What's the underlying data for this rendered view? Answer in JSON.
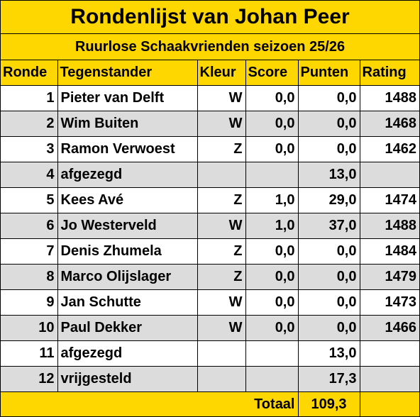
{
  "title": "Rondenlijst van Johan Peer",
  "subtitle": "Ruurlose Schaakvrienden seizoen 25/26",
  "headers": {
    "ronde": "Ronde",
    "tegenstander": "Tegenstander",
    "kleur": "Kleur",
    "score": "Score",
    "punten": "Punten",
    "rating": "Rating"
  },
  "rows": [
    {
      "ronde": "1",
      "tegenstander": "Pieter van Delft",
      "kleur": "W",
      "score": "0,0",
      "punten": "0,0",
      "rating": "1488"
    },
    {
      "ronde": "2",
      "tegenstander": "Wim Buiten",
      "kleur": "W",
      "score": "0,0",
      "punten": "0,0",
      "rating": "1468"
    },
    {
      "ronde": "3",
      "tegenstander": "Ramon Verwoest",
      "kleur": "Z",
      "score": "0,0",
      "punten": "0,0",
      "rating": "1462"
    },
    {
      "ronde": "4",
      "tegenstander": "afgezegd",
      "kleur": "",
      "score": "",
      "punten": "13,0",
      "rating": ""
    },
    {
      "ronde": "5",
      "tegenstander": "Kees Avé",
      "kleur": "Z",
      "score": "1,0",
      "punten": "29,0",
      "rating": "1474"
    },
    {
      "ronde": "6",
      "tegenstander": "Jo Westerveld",
      "kleur": "W",
      "score": "1,0",
      "punten": "37,0",
      "rating": "1488"
    },
    {
      "ronde": "7",
      "tegenstander": "Denis Zhumela",
      "kleur": "Z",
      "score": "0,0",
      "punten": "0,0",
      "rating": "1484"
    },
    {
      "ronde": "8",
      "tegenstander": "Marco Olijslager",
      "kleur": "Z",
      "score": "0,0",
      "punten": "0,0",
      "rating": "1479"
    },
    {
      "ronde": "9",
      "tegenstander": "Jan Schutte",
      "kleur": "W",
      "score": "0,0",
      "punten": "0,0",
      "rating": "1473"
    },
    {
      "ronde": "10",
      "tegenstander": "Paul Dekker",
      "kleur": "W",
      "score": "0,0",
      "punten": "0,0",
      "rating": "1466"
    },
    {
      "ronde": "11",
      "tegenstander": "afgezegd",
      "kleur": "",
      "score": "",
      "punten": "13,0",
      "rating": ""
    },
    {
      "ronde": "12",
      "tegenstander": "vrijgesteld",
      "kleur": "",
      "score": "",
      "punten": "17,3",
      "rating": ""
    }
  ],
  "total": {
    "label": "Totaal",
    "value": "109,3"
  },
  "colors": {
    "header": "#FFD700",
    "stripe": "#DCDCDC"
  }
}
